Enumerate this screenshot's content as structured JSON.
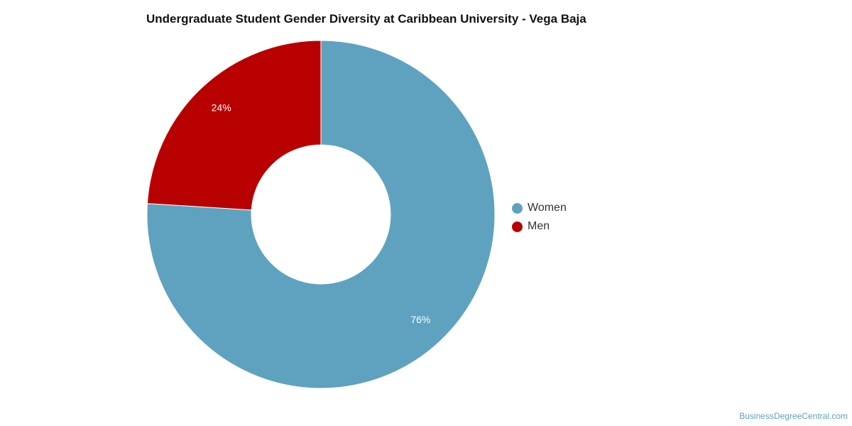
{
  "chart_data": {
    "type": "pie",
    "variant": "donut",
    "title": "Undergraduate Student Gender Diversity at Caribbean University - Vega Baja",
    "categories": [
      "Women",
      "Men"
    ],
    "values": [
      76,
      24
    ],
    "data_labels": [
      "76%",
      "24%"
    ],
    "colors": [
      "#5ea2c0",
      "#b90000"
    ],
    "legend": {
      "placement": "right",
      "items": [
        {
          "label": "Women",
          "color": "#5ea2c0"
        },
        {
          "label": "Men",
          "color": "#b90000"
        }
      ]
    }
  },
  "watermark": "BusinessDegreeCentral.com"
}
